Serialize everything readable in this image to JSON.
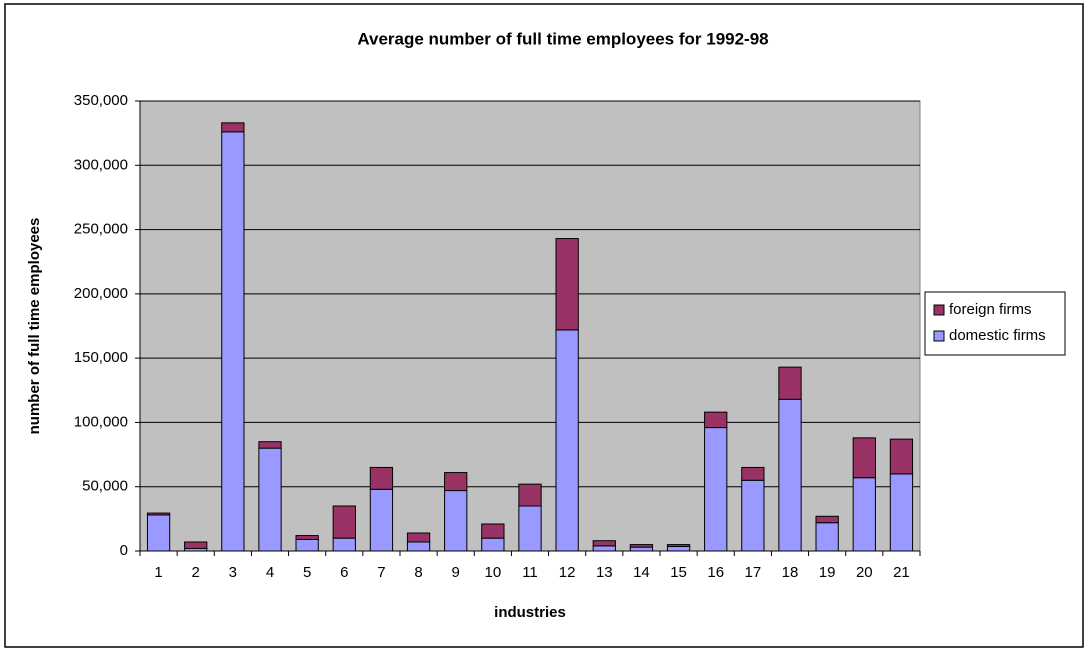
{
  "chart_data": {
    "type": "stacked_bar",
    "title": "Average number of full time employees for 1992-98",
    "x_label": "industries",
    "y_label": "number of full time employees",
    "categories": [
      "1",
      "2",
      "3",
      "4",
      "5",
      "6",
      "7",
      "8",
      "9",
      "10",
      "11",
      "12",
      "13",
      "14",
      "15",
      "16",
      "17",
      "18",
      "19",
      "20",
      "21"
    ],
    "series": [
      {
        "name": "domestic firms",
        "color": "#9999ff",
        "values": [
          28000,
          2000,
          326000,
          80000,
          9000,
          10000,
          48000,
          7000,
          47000,
          10000,
          35000,
          172000,
          4000,
          3000,
          3500,
          96000,
          55000,
          118000,
          22000,
          57000,
          60000
        ]
      },
      {
        "name": "foreign firms",
        "color": "#993366",
        "values": [
          1500,
          5000,
          7000,
          5000,
          3000,
          25000,
          17000,
          7000,
          14000,
          11000,
          17000,
          71000,
          4000,
          2000,
          1500,
          12000,
          10000,
          25000,
          5000,
          31000,
          27000
        ]
      }
    ],
    "ylim": [
      0,
      350000
    ],
    "yticks": [
      0,
      {
        "value": 50000,
        "label": "50,000"
      },
      {
        "value": 100000,
        "label": "100,000"
      },
      {
        "value": 150000,
        "label": "150,000"
      },
      {
        "value": 200000,
        "label": "200,000"
      },
      {
        "value": 250000,
        "label": "250,000"
      },
      {
        "value": 300000,
        "label": "300,000"
      },
      {
        "value": 350000,
        "label": "350,000"
      }
    ],
    "grid": true,
    "legend": "right"
  }
}
